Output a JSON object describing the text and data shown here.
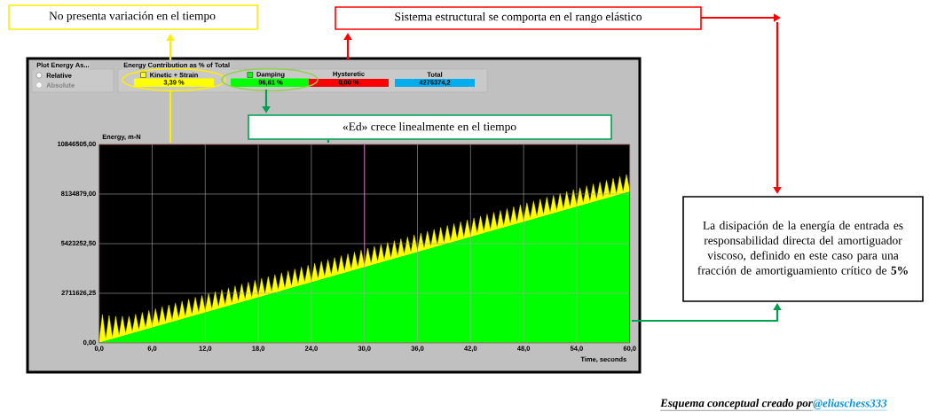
{
  "chart_data": {
    "type": "area",
    "stacked": true,
    "grid": true,
    "legend": "top",
    "xlabel": "Time, seconds",
    "ylabel": "Energy, m-N",
    "xlim": [
      0,
      60
    ],
    "ylim": [
      0,
      10846505
    ],
    "xticks": [
      {
        "value": 0,
        "label": "0,0"
      },
      {
        "value": 6,
        "label": "6,0"
      },
      {
        "value": 12,
        "label": "12,0"
      },
      {
        "value": 18,
        "label": "18,0"
      },
      {
        "value": 24,
        "label": "24,0"
      },
      {
        "value": 30,
        "label": "30,0"
      },
      {
        "value": 36,
        "label": "36,0"
      },
      {
        "value": 42,
        "label": "42,0"
      },
      {
        "value": 48,
        "label": "48,0"
      },
      {
        "value": 54,
        "label": "54,0"
      },
      {
        "value": 60,
        "label": "60,0"
      }
    ],
    "yticks": [
      {
        "value": 0,
        "label": "0,00"
      },
      {
        "value": 2711626.25,
        "label": "2711626,25"
      },
      {
        "value": 5423252.5,
        "label": "5423252,50"
      },
      {
        "value": 8134879,
        "label": "8134879,00"
      },
      {
        "value": 10846505,
        "label": "10846505,00"
      }
    ],
    "x": [
      0,
      0.375,
      0.75,
      1.125,
      1.5,
      1.875,
      2.25,
      2.625,
      3,
      3.375,
      3.75,
      4.125,
      4.5,
      4.875,
      5.25,
      5.625,
      6,
      6.375,
      6.75,
      7.125,
      7.5,
      7.875,
      8.25,
      8.625,
      9,
      9.375,
      9.75,
      10.125,
      10.5,
      10.875,
      11.25,
      11.625,
      12,
      12.375,
      12.75,
      13.125,
      13.5,
      13.875,
      14.25,
      14.625,
      15,
      15.375,
      15.75,
      16.125,
      16.5,
      16.875,
      17.25,
      17.625,
      18,
      18.375,
      18.75,
      19.125,
      19.5,
      19.875,
      20.25,
      20.625,
      21,
      21.375,
      21.75,
      22.125,
      22.5,
      22.875,
      23.25,
      23.625,
      24,
      24.375,
      24.75,
      25.125,
      25.5,
      25.875,
      26.25,
      26.625,
      27,
      27.375,
      27.75,
      28.125,
      28.5,
      28.875,
      29.25,
      29.625,
      30,
      30.375,
      30.75,
      31.125,
      31.5,
      31.875,
      32.25,
      32.625,
      33,
      33.375,
      33.75,
      34.125,
      34.5,
      34.875,
      35.25,
      35.625,
      36,
      36.375,
      36.75,
      37.125,
      37.5,
      37.875,
      38.25,
      38.625,
      39,
      39.375,
      39.75,
      40.125,
      40.5,
      40.875,
      41.25,
      41.625,
      42,
      42.375,
      42.75,
      43.125,
      43.5,
      43.875,
      44.25,
      44.625,
      45,
      45.375,
      45.75,
      46.125,
      46.5,
      46.875,
      47.25,
      47.625,
      48,
      48.375,
      48.75,
      49.125,
      49.5,
      49.875,
      50.25,
      50.625,
      51,
      51.375,
      51.75,
      52.125,
      52.5,
      52.875,
      53.25,
      53.625,
      54,
      54.375,
      54.75,
      55.125,
      55.5,
      55.875,
      56.25,
      56.625,
      57,
      57.375,
      57.75,
      58.125,
      58.5,
      58.875,
      59.25,
      59.625,
      60
    ],
    "series": [
      {
        "name": "Damping",
        "color": "#00ff00",
        "values": [
          0,
          51600,
          103200,
          154800,
          206400,
          258000,
          309600,
          361200,
          412800,
          464400,
          516000,
          567600,
          619200,
          670800,
          722400,
          774000,
          825600,
          877200,
          928800,
          980400,
          1032000,
          1083600,
          1135200,
          1186800,
          1238400,
          1290000,
          1341600,
          1393200,
          1444800,
          1496400,
          1548000,
          1599600,
          1651200,
          1702800,
          1754400,
          1806000,
          1857600,
          1909200,
          1960800,
          2012400,
          2064000,
          2115600,
          2167200,
          2218800,
          2270400,
          2322000,
          2373600,
          2425200,
          2476800,
          2528400,
          2580000,
          2631600,
          2683200,
          2734800,
          2786400,
          2838000,
          2889600,
          2941200,
          2992800,
          3044400,
          3096000,
          3147600,
          3199200,
          3250800,
          3302400,
          3354000,
          3405600,
          3457200,
          3508800,
          3560400,
          3612000,
          3663600,
          3715200,
          3766800,
          3818400,
          3870000,
          3921600,
          3973200,
          4024800,
          4076400,
          4128000,
          4179600,
          4231200,
          4282800,
          4334400,
          4386000,
          4437600,
          4489200,
          4540800,
          4592400,
          4644000,
          4695600,
          4747200,
          4798800,
          4850400,
          4902000,
          4953600,
          5005200,
          5056800,
          5108400,
          5160000,
          5211600,
          5263200,
          5314800,
          5366400,
          5418000,
          5469600,
          5521200,
          5572800,
          5624400,
          5676000,
          5727600,
          5779200,
          5830800,
          5882400,
          5934000,
          5985600,
          6037200,
          6088800,
          6140400,
          6192000,
          6243600,
          6295200,
          6346800,
          6398400,
          6450000,
          6501600,
          6553200,
          6604800,
          6656400,
          6708000,
          6759600,
          6811200,
          6862800,
          6914400,
          6966000,
          7017600,
          7069200,
          7120800,
          7172400,
          7224000,
          7275600,
          7327200,
          7378800,
          7430400,
          7482000,
          7533600,
          7585200,
          7636800,
          7688400,
          7740000,
          7791600,
          7843200,
          7894800,
          7946400,
          7998000,
          8049600,
          8101200,
          8152800,
          8204400,
          8256000
        ]
      },
      {
        "name": "Kinetic + Strain",
        "color": "#ffff00",
        "values": [
          100000,
          1500000,
          100000,
          1350000,
          100000,
          1200000,
          100000,
          1100000,
          100000,
          1000000,
          100000,
          1000000,
          100000,
          1000000,
          100000,
          1000000,
          100000,
          1000000,
          100000,
          1000000,
          100000,
          1000000,
          100000,
          1000000,
          100000,
          1000000,
          100000,
          1000000,
          100000,
          1000000,
          100000,
          1000000,
          100000,
          1000000,
          100000,
          1000000,
          100000,
          1000000,
          100000,
          1000000,
          100000,
          1000000,
          100000,
          1000000,
          100000,
          1000000,
          100000,
          1000000,
          100000,
          1000000,
          100000,
          1000000,
          100000,
          1000000,
          100000,
          1000000,
          100000,
          1000000,
          100000,
          1000000,
          100000,
          1000000,
          100000,
          1000000,
          100000,
          1000000,
          100000,
          1000000,
          100000,
          1000000,
          100000,
          1000000,
          100000,
          1000000,
          100000,
          1000000,
          100000,
          1000000,
          100000,
          1000000,
          100000,
          1000000,
          100000,
          1000000,
          100000,
          1000000,
          100000,
          1000000,
          100000,
          1000000,
          100000,
          1000000,
          100000,
          1000000,
          100000,
          1000000,
          100000,
          1000000,
          100000,
          1000000,
          100000,
          1000000,
          100000,
          1000000,
          100000,
          1000000,
          100000,
          1000000,
          100000,
          1000000,
          100000,
          1000000,
          100000,
          1000000,
          100000,
          1000000,
          100000,
          1000000,
          100000,
          1000000,
          100000,
          1000000,
          100000,
          1000000,
          100000,
          1000000,
          100000,
          1000000,
          100000,
          1000000,
          100000,
          1000000,
          100000,
          1000000,
          100000,
          1000000,
          100000,
          1000000,
          100000,
          1000000,
          100000,
          1000000,
          100000,
          1000000,
          100000,
          1000000,
          100000,
          1000000,
          100000,
          1000000,
          100000,
          1000000,
          100000,
          1000000,
          100000,
          1000000,
          100000,
          1000000,
          100000,
          1000000,
          100000
        ]
      }
    ],
    "ref_lines": [
      {
        "axis": "x",
        "value": 30,
        "color": "#a020a0"
      }
    ],
    "annotations": [
      "Plot Energy As...",
      "Relative",
      "Absolute",
      "Energy Contribution as % of Total",
      "3,39 %",
      "96,61 %",
      "Hysteretic",
      "0,00 %",
      "Total",
      "4276374,2",
      "No presenta variación en el tiempo",
      "Sistema estructural se comporta en el rango elástico",
      "«Ed» crece linealmente en el tiempo",
      "La disipación de la energía de entrada es responsabilidad directa del amortiguador viscoso, definido en este caso para una fracción de amortiguamiento crítico de **5%**",
      "Esquema  conceptual creado por",
      "@eliaschess333"
    ]
  }
}
